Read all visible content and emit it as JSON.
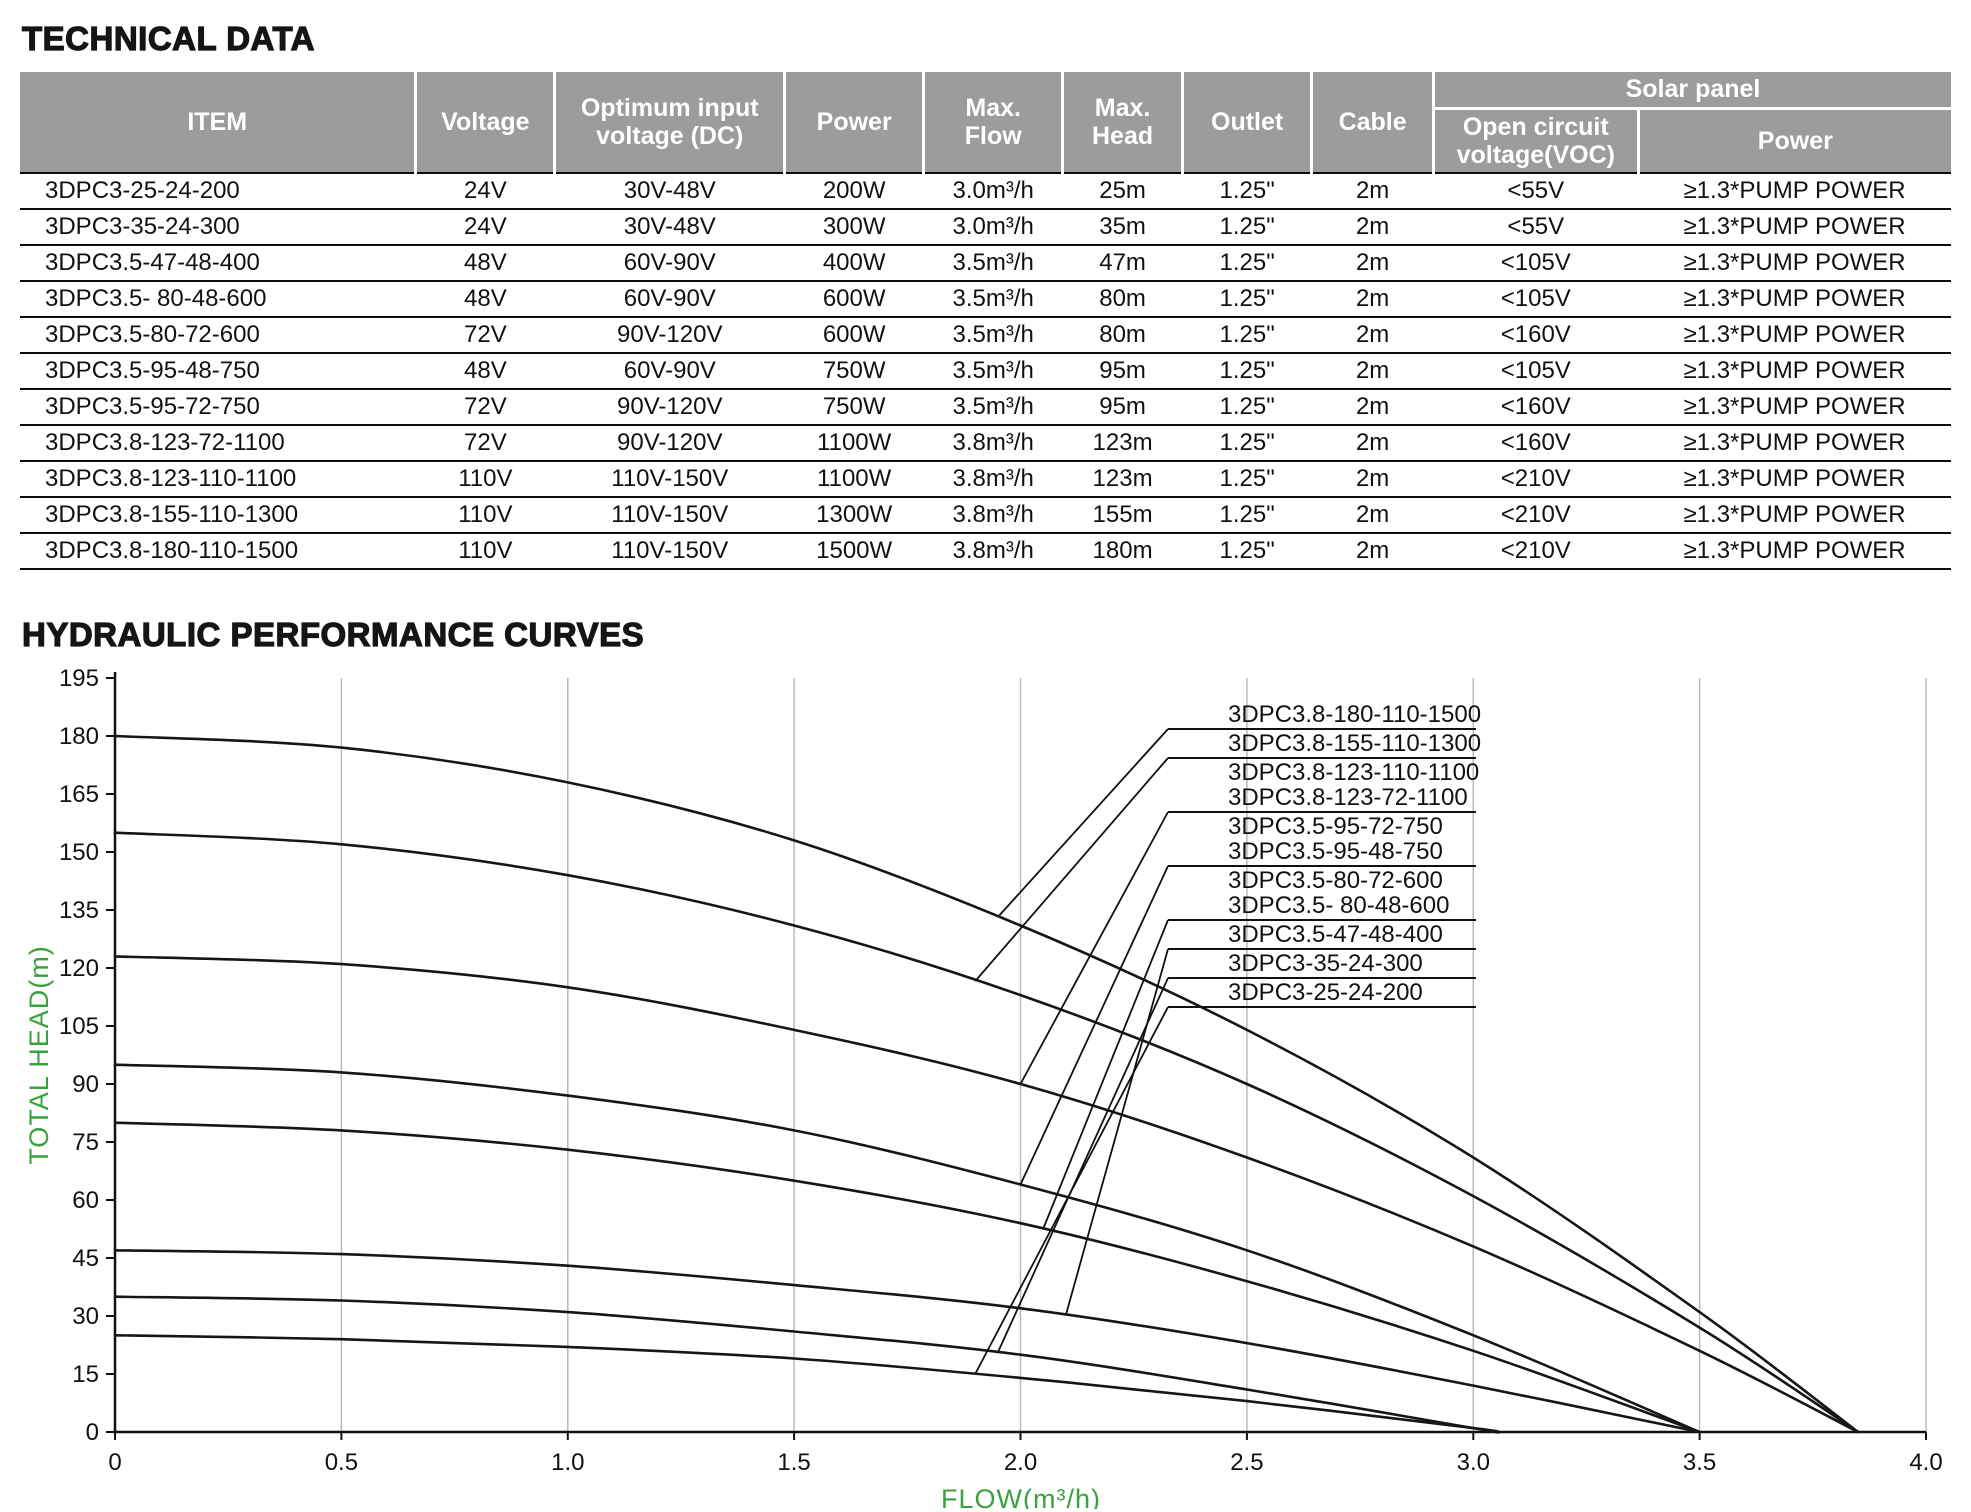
{
  "page": {
    "section1_title": "TECHNICAL DATA",
    "section2_title": "HYDRAULIC PERFORMANCE CURVES"
  },
  "table": {
    "header": {
      "columns": [
        "ITEM",
        "Voltage",
        "Optimum input\nvoltage (DC)",
        "Power",
        "Max.\nFlow",
        "Max.\nHead",
        "Outlet",
        "Cable"
      ],
      "solar_panel": "Solar panel",
      "solar_columns": [
        "Open circuit\nvoltage(VOC)",
        "Power"
      ]
    },
    "rows": [
      [
        "3DPC3-25-24-200",
        "24V",
        "30V-48V",
        "200W",
        "3.0m³/h",
        "25m",
        "1.25\"",
        "2m",
        "<55V",
        "≥1.3*PUMP POWER"
      ],
      [
        "3DPC3-35-24-300",
        "24V",
        "30V-48V",
        "300W",
        "3.0m³/h",
        "35m",
        "1.25\"",
        "2m",
        "<55V",
        "≥1.3*PUMP POWER"
      ],
      [
        "3DPC3.5-47-48-400",
        "48V",
        "60V-90V",
        "400W",
        "3.5m³/h",
        "47m",
        "1.25\"",
        "2m",
        "<105V",
        "≥1.3*PUMP POWER"
      ],
      [
        "3DPC3.5- 80-48-600",
        "48V",
        "60V-90V",
        "600W",
        "3.5m³/h",
        "80m",
        "1.25\"",
        "2m",
        "<105V",
        "≥1.3*PUMP POWER"
      ],
      [
        "3DPC3.5-80-72-600",
        "72V",
        "90V-120V",
        "600W",
        "3.5m³/h",
        "80m",
        "1.25\"",
        "2m",
        "<160V",
        "≥1.3*PUMP POWER"
      ],
      [
        "3DPC3.5-95-48-750",
        "48V",
        "60V-90V",
        "750W",
        "3.5m³/h",
        "95m",
        "1.25\"",
        "2m",
        "<105V",
        "≥1.3*PUMP POWER"
      ],
      [
        "3DPC3.5-95-72-750",
        "72V",
        "90V-120V",
        "750W",
        "3.5m³/h",
        "95m",
        "1.25\"",
        "2m",
        "<160V",
        "≥1.3*PUMP POWER"
      ],
      [
        "3DPC3.8-123-72-1100",
        "72V",
        "90V-120V",
        "1100W",
        "3.8m³/h",
        "123m",
        "1.25\"",
        "2m",
        "<160V",
        "≥1.3*PUMP POWER"
      ],
      [
        "3DPC3.8-123-110-1100",
        "110V",
        "110V-150V",
        "1100W",
        "3.8m³/h",
        "123m",
        "1.25\"",
        "2m",
        "<210V",
        "≥1.3*PUMP POWER"
      ],
      [
        "3DPC3.8-155-110-1300",
        "110V",
        "110V-150V",
        "1300W",
        "3.8m³/h",
        "155m",
        "1.25\"",
        "2m",
        "<210V",
        "≥1.3*PUMP POWER"
      ],
      [
        "3DPC3.8-180-110-1500",
        "110V",
        "110V-150V",
        "1500W",
        "3.8m³/h",
        "180m",
        "1.25\"",
        "2m",
        "<210V",
        "≥1.3*PUMP POWER"
      ]
    ]
  },
  "chart_data": {
    "type": "line",
    "title": "",
    "xlabel": "FLOW(m³/h)",
    "ylabel": "TOTAL HEAD(m)",
    "xlim": [
      0,
      4.0
    ],
    "ylim": [
      0,
      195
    ],
    "x_ticks": [
      "0",
      "0.5",
      "1.0",
      "1.5",
      "2.0",
      "2.5",
      "3.0",
      "3.5",
      "4.0"
    ],
    "y_tick_step": 15,
    "grid": "vertical-only",
    "axis_label_color": "#3ba13e",
    "curve_color": "#161616",
    "curves": {
      "h180": {
        "max_head": 180,
        "max_flow": 3.85,
        "points": [
          [
            0,
            180
          ],
          [
            0.5,
            177
          ],
          [
            1,
            168
          ],
          [
            1.5,
            153
          ],
          [
            2,
            131
          ],
          [
            2.5,
            104
          ],
          [
            3,
            71
          ],
          [
            3.5,
            31
          ],
          [
            3.85,
            0
          ]
        ]
      },
      "h155": {
        "max_head": 155,
        "max_flow": 3.85,
        "points": [
          [
            0,
            155
          ],
          [
            0.5,
            152
          ],
          [
            1,
            144
          ],
          [
            1.5,
            131
          ],
          [
            2,
            113
          ],
          [
            2.5,
            90
          ],
          [
            3,
            61
          ],
          [
            3.5,
            27
          ],
          [
            3.85,
            0
          ]
        ]
      },
      "h123": {
        "max_head": 123,
        "max_flow": 3.85,
        "points": [
          [
            0,
            123
          ],
          [
            0.5,
            121
          ],
          [
            1,
            115
          ],
          [
            1.5,
            104
          ],
          [
            2,
            90
          ],
          [
            2.5,
            71
          ],
          [
            3,
            48
          ],
          [
            3.5,
            21
          ],
          [
            3.85,
            0
          ]
        ]
      },
      "h95": {
        "max_head": 95,
        "max_flow": 3.5,
        "points": [
          [
            0,
            95
          ],
          [
            0.5,
            93
          ],
          [
            1,
            87
          ],
          [
            1.5,
            78
          ],
          [
            2,
            64
          ],
          [
            2.5,
            47
          ],
          [
            3,
            25
          ],
          [
            3.5,
            0
          ]
        ]
      },
      "h80": {
        "max_head": 80,
        "max_flow": 3.5,
        "points": [
          [
            0,
            80
          ],
          [
            0.5,
            78
          ],
          [
            1,
            73
          ],
          [
            1.5,
            65
          ],
          [
            2,
            54
          ],
          [
            2.5,
            39
          ],
          [
            3,
            21
          ],
          [
            3.5,
            0
          ]
        ]
      },
      "h47": {
        "max_head": 47,
        "max_flow": 3.5,
        "points": [
          [
            0,
            47
          ],
          [
            0.5,
            46
          ],
          [
            1,
            43
          ],
          [
            1.5,
            38
          ],
          [
            2,
            32
          ],
          [
            2.5,
            23
          ],
          [
            3,
            12
          ],
          [
            3.5,
            0
          ]
        ]
      },
      "h35": {
        "max_head": 35,
        "max_flow": 3.05,
        "points": [
          [
            0,
            35
          ],
          [
            0.5,
            34
          ],
          [
            1,
            31
          ],
          [
            1.5,
            26
          ],
          [
            2,
            20
          ],
          [
            2.5,
            11
          ],
          [
            3,
            1
          ],
          [
            3.05,
            0
          ]
        ]
      },
      "h25": {
        "max_head": 25,
        "max_flow": 3.05,
        "points": [
          [
            0,
            25
          ],
          [
            0.5,
            24
          ],
          [
            1,
            22
          ],
          [
            1.5,
            19
          ],
          [
            2,
            14
          ],
          [
            2.5,
            8
          ],
          [
            3,
            1
          ],
          [
            3.05,
            0
          ]
        ]
      }
    },
    "series": [
      {
        "name": "3DPC3.8-180-110-1500",
        "curve": "h180"
      },
      {
        "name": "3DPC3.8-155-110-1300",
        "curve": "h155"
      },
      {
        "name": "3DPC3.8-123-110-1100",
        "curve": "h123"
      },
      {
        "name": "3DPC3.8-123-72-1100",
        "curve": "h123"
      },
      {
        "name": "3DPC3.5-95-72-750",
        "curve": "h95"
      },
      {
        "name": "3DPC3.5-95-48-750",
        "curve": "h95"
      },
      {
        "name": "3DPC3.5-80-72-600",
        "curve": "h80"
      },
      {
        "name": "3DPC3.5- 80-48-600",
        "curve": "h80"
      },
      {
        "name": "3DPC3.5-47-48-400",
        "curve": "h47"
      },
      {
        "name": "3DPC3-35-24-300",
        "curve": "h35"
      },
      {
        "name": "3DPC3-25-24-200",
        "curve": "h25"
      }
    ],
    "label_groups": [
      {
        "lines": [
          "3DPC3.8-180-110-1500"
        ],
        "curve": "h180",
        "attach_flow": 1.95
      },
      {
        "lines": [
          "3DPC3.8-155-110-1300"
        ],
        "curve": "h155",
        "attach_flow": 1.9
      },
      {
        "lines": [
          "3DPC3.8-123-110-1100",
          "3DPC3.8-123-72-1100"
        ],
        "curve": "h123",
        "attach_flow": 2.0
      },
      {
        "lines": [
          "3DPC3.5-95-72-750",
          "3DPC3.5-95-48-750"
        ],
        "curve": "h95",
        "attach_flow": 2.0
      },
      {
        "lines": [
          "3DPC3.5-80-72-600",
          "3DPC3.5- 80-48-600"
        ],
        "curve": "h80",
        "attach_flow": 2.05
      },
      {
        "lines": [
          "3DPC3.5-47-48-400"
        ],
        "curve": "h47",
        "attach_flow": 2.1
      },
      {
        "lines": [
          "3DPC3-35-24-300"
        ],
        "curve": "h35",
        "attach_flow": 1.95
      },
      {
        "lines": [
          "3DPC3-25-24-200"
        ],
        "curve": "h25",
        "attach_flow": 1.9
      }
    ]
  }
}
